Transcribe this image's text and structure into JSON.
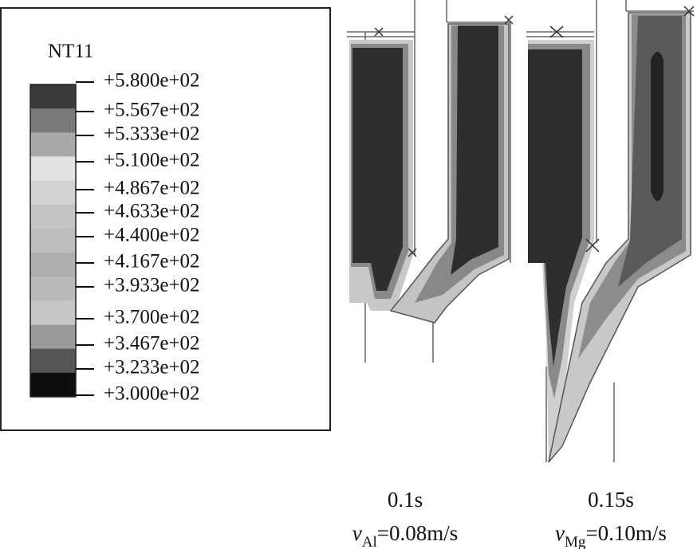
{
  "legend": {
    "title": "NT11",
    "labels": [
      "+5.800e+02",
      "+5.567e+02",
      "+5.333e+02",
      "+5.100e+02",
      "+4.867e+02",
      "+4.633e+02",
      "+4.400e+02",
      "+4.167e+02",
      "+3.933e+02",
      "+3.700e+02",
      "+3.467e+02",
      "+3.233e+02",
      "+3.000e+02"
    ],
    "colors": [
      "#3a3a3a",
      "#7a7a7a",
      "#a9a9a9",
      "#e2e2e2",
      "#d2d2d2",
      "#c4c4c4",
      "#bdbdbd",
      "#aeaeae",
      "#bababa",
      "#c6c6c6",
      "#9a9a9a",
      "#555555",
      "#0e0e0e"
    ]
  },
  "panels": [
    {
      "time": "0.1s",
      "velocity": {
        "symbol": "v",
        "subscript": "Al",
        "value": "=0.08m/s"
      }
    },
    {
      "time": "0.15s",
      "velocity": {
        "symbol": "v",
        "subscript": "Mg",
        "value": "=0.10m/s"
      }
    }
  ]
}
